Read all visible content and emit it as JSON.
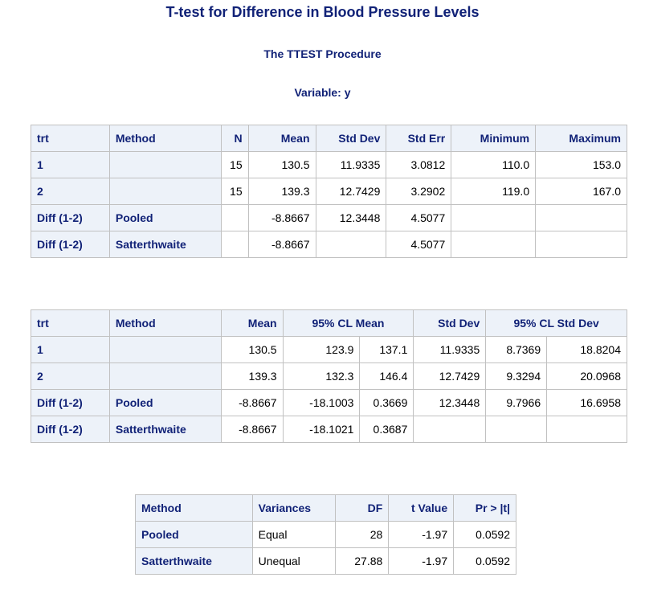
{
  "titles": {
    "main": "T-test for Difference in Blood Pressure Levels",
    "procedure": "The TTEST Procedure",
    "variable": "Variable: y"
  },
  "stats_table": {
    "headers": [
      "trt",
      "Method",
      "N",
      "Mean",
      "Std Dev",
      "Std Err",
      "Minimum",
      "Maximum"
    ],
    "rows": [
      [
        "1",
        "",
        "15",
        "130.5",
        "11.9335",
        "3.0812",
        "110.0",
        "153.0"
      ],
      [
        "2",
        "",
        "15",
        "139.3",
        "12.7429",
        "3.2902",
        "119.0",
        "167.0"
      ],
      [
        "Diff (1-2)",
        "Pooled",
        "",
        "-8.8667",
        "12.3448",
        "4.5077",
        "",
        ""
      ],
      [
        "Diff (1-2)",
        "Satterthwaite",
        "",
        "-8.8667",
        "",
        "4.5077",
        "",
        ""
      ]
    ]
  },
  "conf_table": {
    "headers": [
      "trt",
      "Method",
      "Mean",
      "95% CL Mean",
      "Std Dev",
      "95% CL Std Dev"
    ],
    "rows": [
      [
        "1",
        "",
        "130.5",
        "123.9",
        "137.1",
        "11.9335",
        "8.7369",
        "18.8204"
      ],
      [
        "2",
        "",
        "139.3",
        "132.3",
        "146.4",
        "12.7429",
        "9.3294",
        "20.0968"
      ],
      [
        "Diff (1-2)",
        "Pooled",
        "-8.8667",
        "-18.1003",
        "0.3669",
        "12.3448",
        "9.7966",
        "16.6958"
      ],
      [
        "Diff (1-2)",
        "Satterthwaite",
        "-8.8667",
        "-18.1021",
        "0.3687",
        "",
        "",
        ""
      ]
    ]
  },
  "ttest_table": {
    "headers": [
      "Method",
      "Variances",
      "DF",
      "t Value",
      "Pr > |t|"
    ],
    "rows": [
      [
        "Pooled",
        "Equal",
        "28",
        "-1.97",
        "0.0592"
      ],
      [
        "Satterthwaite",
        "Unequal",
        "27.88",
        "-1.97",
        "0.0592"
      ]
    ]
  },
  "colors": {
    "title": "#112277",
    "header_bg": "#edf2f9",
    "border": "#c1c1c1"
  }
}
